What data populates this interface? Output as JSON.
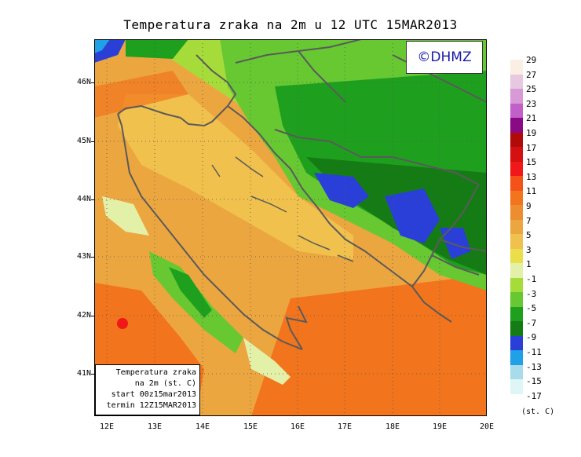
{
  "title": "Temperatura zraka na 2m u 12 UTC 15MAR2013",
  "logo": "©DHMZ",
  "info": {
    "line1": "Temperatura zraka",
    "line2": "na 2m (st. C)",
    "line3": "start 00z15mar2013",
    "line4": "termin 12Z15MAR2013"
  },
  "lat_labels": [
    "46N",
    "45N",
    "44N",
    "43N",
    "42N",
    "41N"
  ],
  "lon_labels": [
    "12E",
    "13E",
    "14E",
    "15E",
    "16E",
    "17E",
    "18E",
    "19E",
    "20E"
  ],
  "colorbar": {
    "labels": [
      "29",
      "27",
      "25",
      "23",
      "21",
      "19",
      "17",
      "15",
      "13",
      "11",
      "9",
      "7",
      "5",
      "3",
      "1",
      "-1",
      "-3",
      "-5",
      "-7",
      "-9",
      "-11",
      "-13",
      "-15",
      "-17"
    ],
    "colors": [
      "#fbeee2",
      "#e8c8e0",
      "#d79ad6",
      "#c35fc8",
      "#8a0a86",
      "#b00a0a",
      "#d41010",
      "#f01818",
      "#f5521a",
      "#f2741c",
      "#ec8e30",
      "#eca640",
      "#f0c14c",
      "#eade4a",
      "#e3f0a8",
      "#a6dc3a",
      "#67c832",
      "#1ea01e",
      "#157c15",
      "#2a3fd8",
      "#20a0e6",
      "#a8dcea",
      "#def6f6",
      "#ffffff"
    ],
    "unit": "(st. C)"
  }
}
